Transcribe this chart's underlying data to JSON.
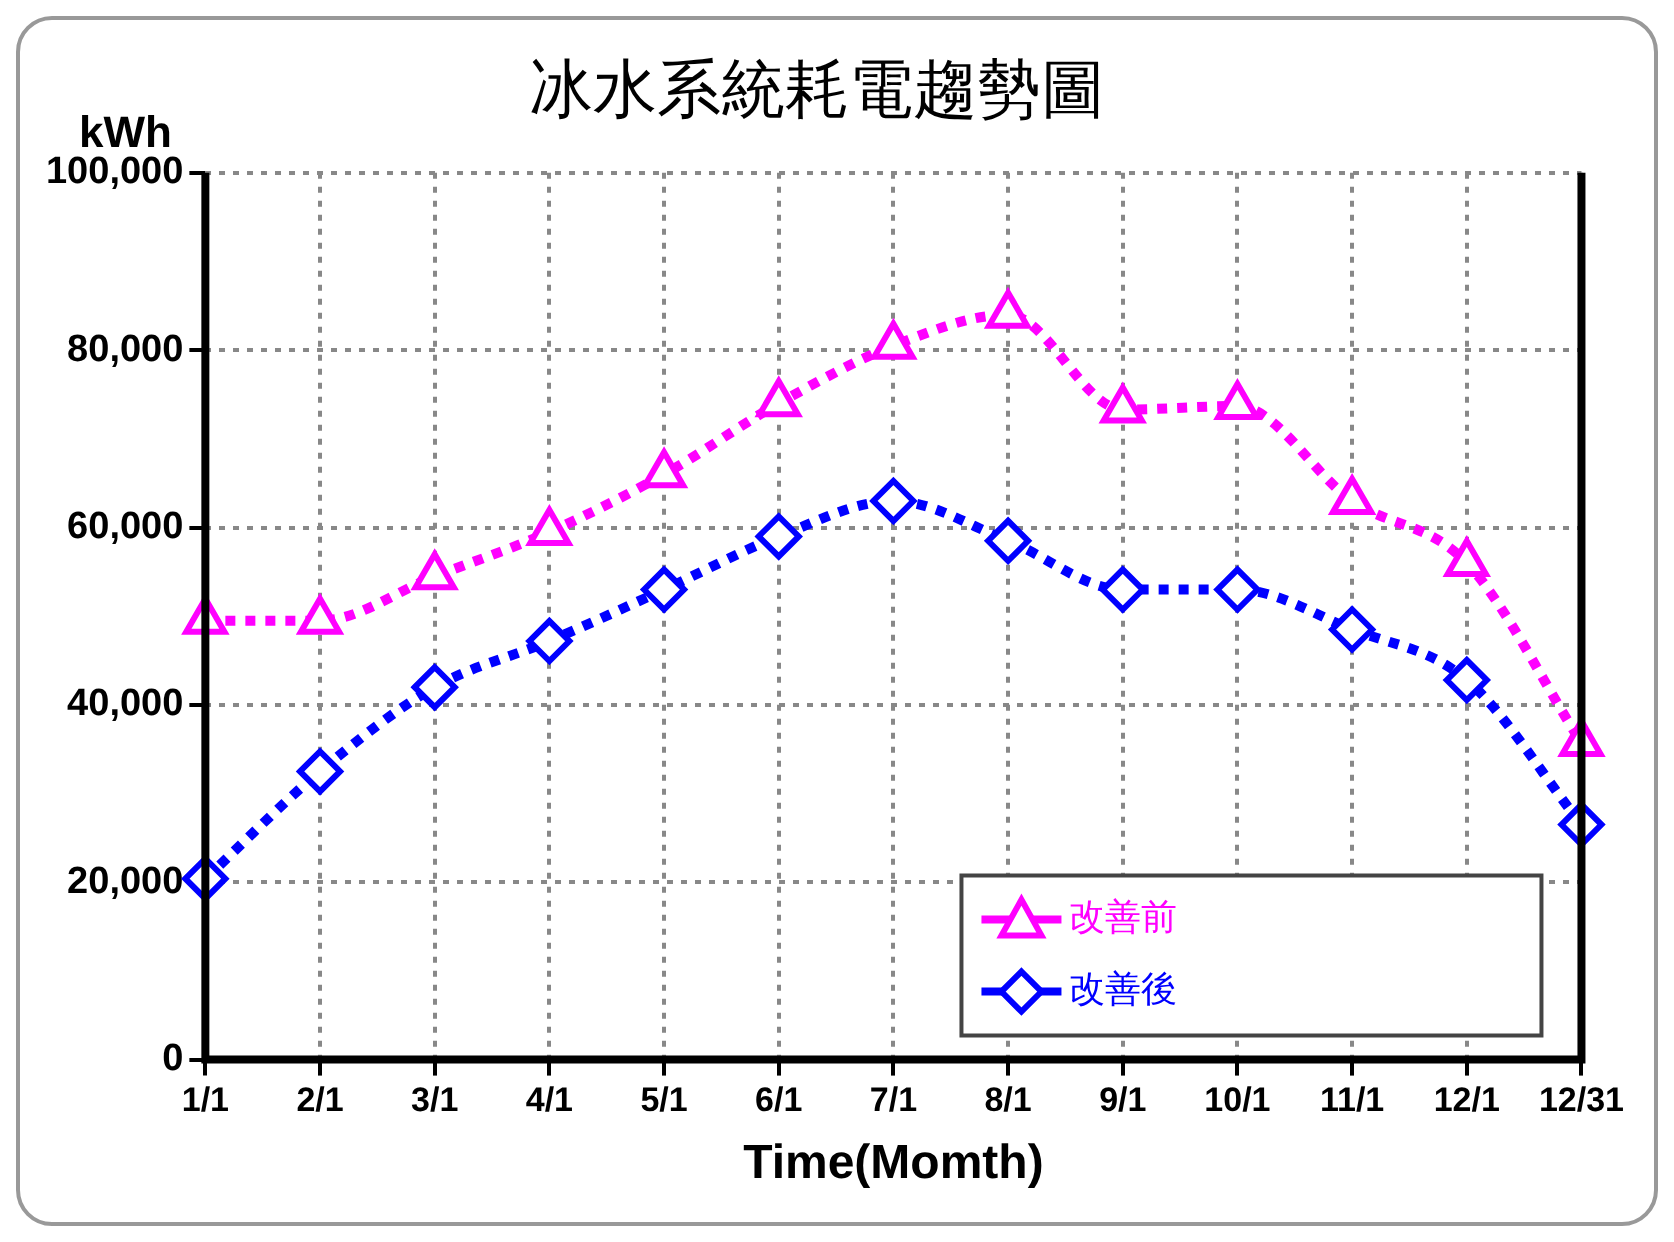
{
  "chart_data": {
    "type": "line",
    "title": "冰水系統耗電趨勢圖",
    "ylabel": "kWh",
    "xlabel": "Time(Momth)",
    "categories": [
      "1/1",
      "2/1",
      "3/1",
      "4/1",
      "5/1",
      "6/1",
      "7/1",
      "8/1",
      "9/1",
      "10/1",
      "11/1",
      "12/1",
      "12/31"
    ],
    "series": [
      {
        "name": "改善前",
        "color": "#ff00ff",
        "marker": "triangle",
        "values": [
          49500,
          49500,
          54500,
          59500,
          66000,
          74000,
          80500,
          84000,
          73300,
          73700,
          63000,
          56000,
          35700
        ]
      },
      {
        "name": "改善後",
        "color": "#0000ff",
        "marker": "diamond",
        "values": [
          20400,
          32500,
          42000,
          47200,
          53000,
          59000,
          63000,
          58500,
          53000,
          53000,
          48500,
          42800,
          26500
        ]
      }
    ],
    "ylim": [
      0,
      100000
    ],
    "yticks": [
      {
        "value": 0,
        "label": "0"
      },
      {
        "value": 20000,
        "label": "20,000"
      },
      {
        "value": 40000,
        "label": "40,000"
      },
      {
        "value": 60000,
        "label": "60,000"
      },
      {
        "value": 80000,
        "label": "80,000"
      },
      {
        "value": 100000,
        "label": "100,000"
      }
    ],
    "grid": true,
    "legend": "bottom right",
    "line_style": "dotted"
  }
}
